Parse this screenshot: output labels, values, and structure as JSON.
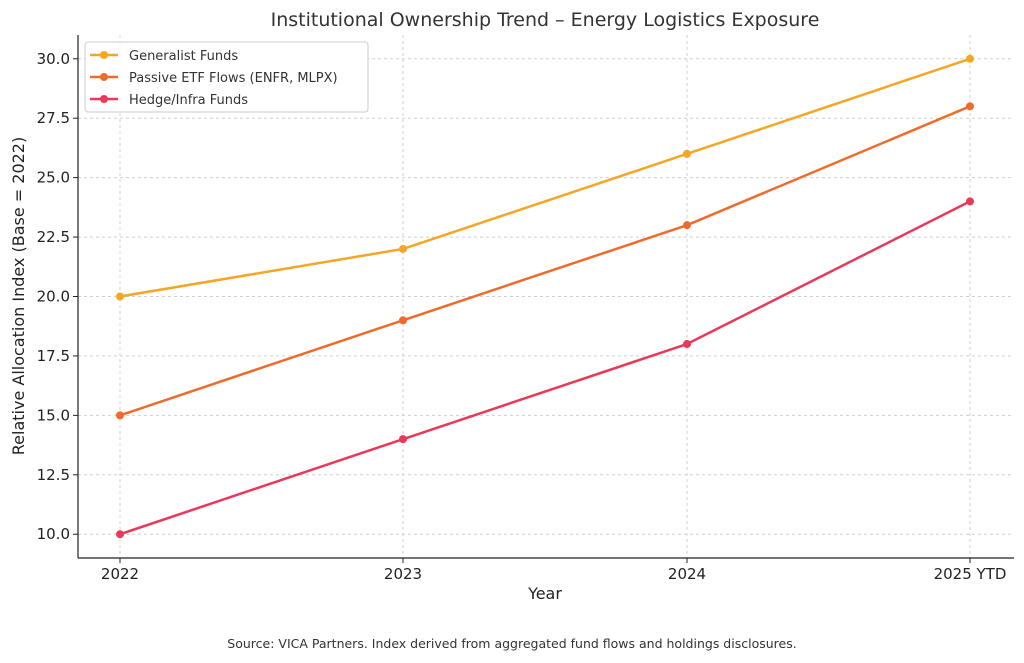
{
  "chart_data": {
    "type": "line",
    "title": "Institutional Ownership Trend – Energy Logistics Exposure",
    "xlabel": "Year",
    "ylabel": "Relative Allocation Index (Base = 2022)",
    "categories": [
      "2022",
      "2023",
      "2024",
      "2025 YTD"
    ],
    "ylim": [
      9,
      31
    ],
    "yticks": [
      10.0,
      12.5,
      15.0,
      17.5,
      20.0,
      22.5,
      25.0,
      27.5,
      30.0
    ],
    "ytick_labels": [
      "10.0",
      "12.5",
      "15.0",
      "17.5",
      "20.0",
      "22.5",
      "25.0",
      "27.5",
      "30.0"
    ],
    "grid": true,
    "legend_position": "top-left",
    "series": [
      {
        "name": "Generalist Funds",
        "color": "#f5a623",
        "values": [
          20,
          22,
          26,
          30
        ]
      },
      {
        "name": "Passive ETF Flows (ENFR, MLPX)",
        "color": "#ee6b2c",
        "values": [
          15,
          19,
          23,
          28
        ]
      },
      {
        "name": "Hedge/Infra Funds",
        "color": "#e8395a",
        "values": [
          10,
          14,
          18,
          24
        ]
      }
    ]
  },
  "footnote": "Source: VICA Partners. Index derived from aggregated fund flows and holdings disclosures."
}
